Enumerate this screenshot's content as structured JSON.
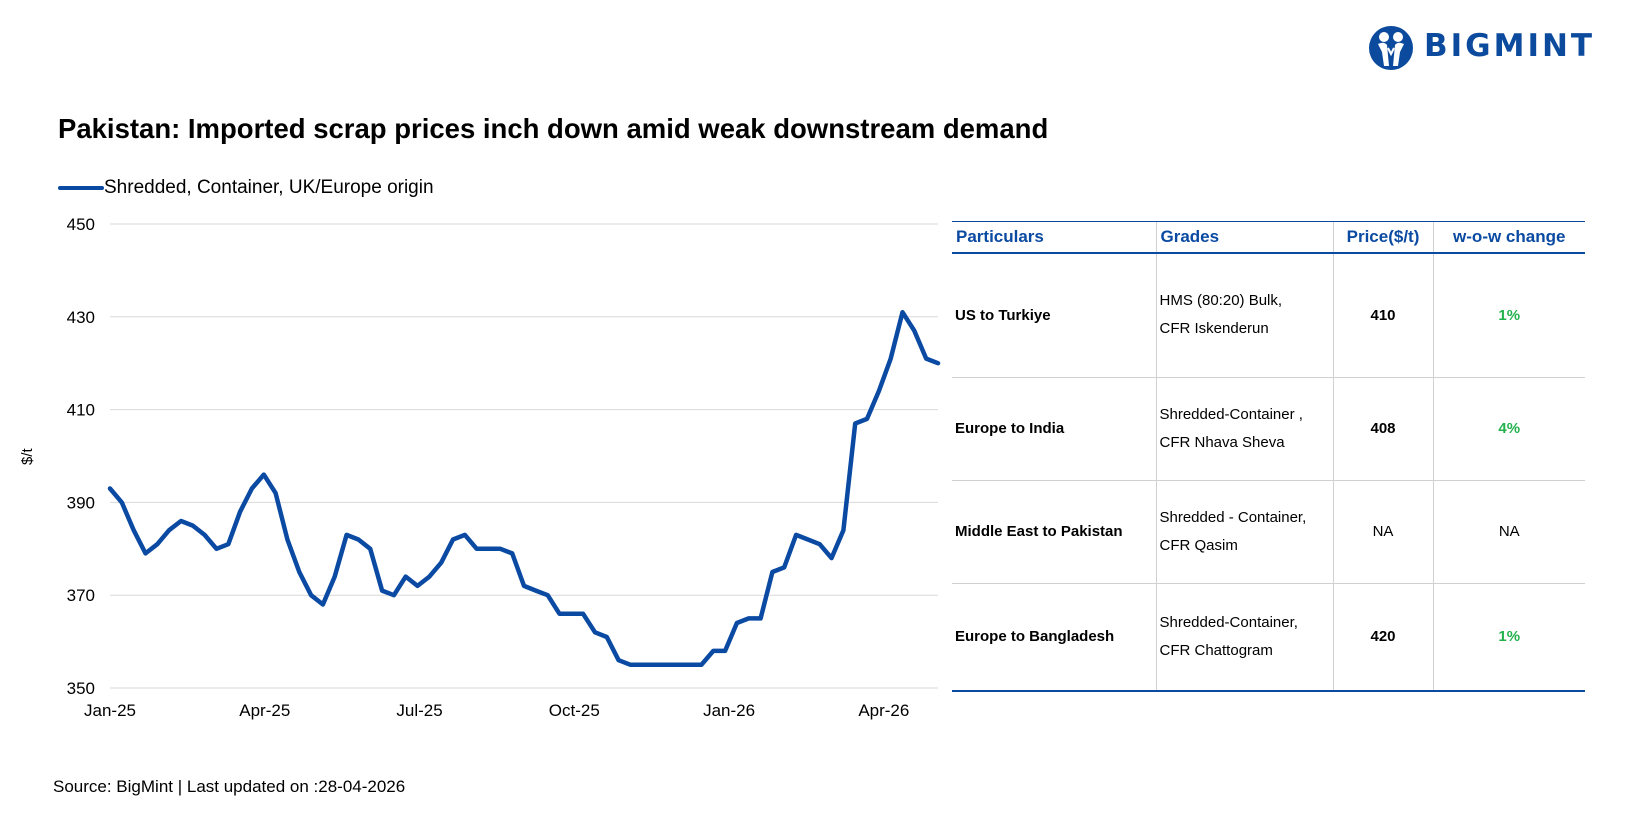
{
  "logo": {
    "text": "BIGMINT",
    "color": "#0b4a9c"
  },
  "title": "Pakistan: Imported scrap prices inch down amid weak downstream demand",
  "source": "Source: BigMint | Last updated on :28-04-2026",
  "chart_data": {
    "type": "line",
    "title": "Pakistan: Imported scrap prices inch down amid weak downstream demand",
    "xlabel": "",
    "ylabel": "$/t",
    "ylim": [
      350,
      450
    ],
    "yticks": [
      "450",
      "430",
      "410",
      "390",
      "370",
      "350"
    ],
    "xtick_labels": [
      "Jan-25",
      "Apr-25",
      "Jul-25",
      "Oct-25",
      "Jan-26",
      "Apr-26"
    ],
    "grid": true,
    "legend": "top-left",
    "color": "#0b4aa2",
    "series": [
      {
        "name": "Shredded, Container, UK/Europe origin",
        "values": [
          393,
          390,
          384,
          379,
          381,
          384,
          386,
          385,
          383,
          380,
          381,
          388,
          393,
          396,
          392,
          382,
          375,
          370,
          368,
          374,
          383,
          382,
          380,
          371,
          370,
          374,
          372,
          374,
          377,
          382,
          383,
          380,
          380,
          380,
          379,
          372,
          371,
          370,
          366,
          366,
          366,
          362,
          361,
          356,
          355,
          355,
          355,
          355,
          355,
          355,
          355,
          358,
          358,
          364,
          365,
          365,
          375,
          376,
          383,
          382,
          381,
          378,
          384,
          407,
          408,
          414,
          421,
          431,
          427,
          421,
          420
        ]
      }
    ]
  },
  "table": {
    "headers": [
      "Particulars",
      "Grades",
      "Price($/t)",
      "w-o-w change"
    ],
    "rows": [
      {
        "particulars": "US to Turkiye",
        "grade1": "HMS (80:20) Bulk,",
        "grade2": "CFR Iskenderun",
        "price": "410",
        "change": "1%"
      },
      {
        "particulars": "Europe to India",
        "grade1": "Shredded-Container ,",
        "grade2": "CFR Nhava Sheva",
        "price": "408",
        "change": "4%"
      },
      {
        "particulars": "Middle East to Pakistan",
        "grade1": "Shredded - Container,",
        "grade2": "CFR Qasim",
        "price": "NA",
        "change": "NA"
      },
      {
        "particulars": "Europe to Bangladesh",
        "grade1": "Shredded-Container,",
        "grade2": "CFR Chattogram",
        "price": "420",
        "change": "1%"
      }
    ]
  }
}
